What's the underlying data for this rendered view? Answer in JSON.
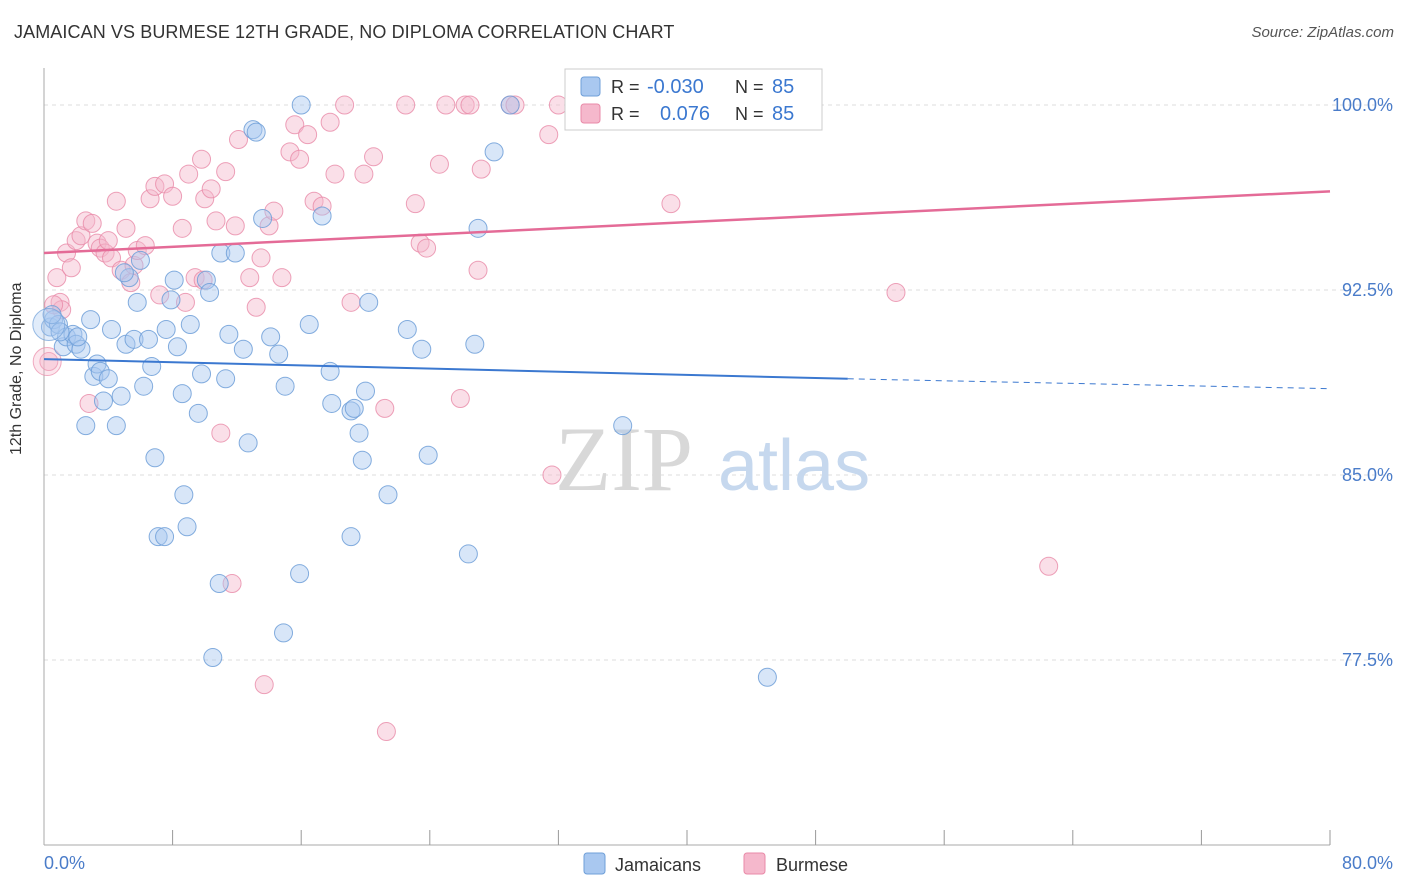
{
  "header": {
    "title": "JAMAICAN VS BURMESE 12TH GRADE, NO DIPLOMA CORRELATION CHART",
    "source": "Source: ZipAtlas.com"
  },
  "legend_top": {
    "row1": {
      "r_label": "R =",
      "r_value": "-0.030",
      "n_label": "N =",
      "n_value": "85"
    },
    "row2": {
      "r_label": "R =",
      "r_value": "0.076",
      "n_label": "N =",
      "n_value": "85"
    }
  },
  "legend_bottom": {
    "series1": "Jamaicans",
    "series2": "Burmese"
  },
  "watermark": {
    "part1": "ZIP",
    "part2": "atlas"
  },
  "colors": {
    "blue_fill": "#a9c8f0",
    "blue_stroke": "#6f9fd8",
    "blue_line": "#3b78d0",
    "pink_fill": "#f5b8cc",
    "pink_stroke": "#e98aa8",
    "pink_line": "#e46b97",
    "tick_text": "#4a7cc9",
    "grid": "#dddddd"
  },
  "chart_data": {
    "type": "scatter",
    "title": "JAMAICAN VS BURMESE 12TH GRADE, NO DIPLOMA CORRELATION CHART",
    "xlabel": "",
    "ylabel": "12th Grade, No Diploma",
    "xlim": [
      0,
      80
    ],
    "ylim": [
      70.0,
      101.5
    ],
    "x_tick_labels": [
      "0.0%",
      "80.0%"
    ],
    "y_ticks": [
      77.5,
      85.0,
      92.5,
      100.0
    ],
    "y_tick_labels": [
      "77.5%",
      "85.0%",
      "92.5%",
      "100.0%"
    ],
    "grid": true,
    "legend_placement": "top-center and bottom-center",
    "series": [
      {
        "name": "Jamaicans",
        "r": -0.03,
        "n": 85,
        "trend": {
          "x0": 0,
          "y0": 89.7,
          "x1": 50,
          "y1": 88.9,
          "dashed_to_x": 80,
          "dashed_to_y": 88.5
        },
        "points": [
          [
            0.4,
            91.0
          ],
          [
            0.6,
            91.3
          ],
          [
            0.9,
            91.1
          ],
          [
            1.2,
            90.2
          ],
          [
            1.4,
            90.6
          ],
          [
            1.8,
            90.7
          ],
          [
            2.0,
            90.3
          ],
          [
            2.3,
            90.1
          ],
          [
            2.6,
            87.0
          ],
          [
            2.9,
            91.3
          ],
          [
            3.1,
            89.0
          ],
          [
            3.3,
            89.5
          ],
          [
            3.5,
            89.2
          ],
          [
            3.7,
            88.0
          ],
          [
            4.0,
            88.9
          ],
          [
            4.2,
            90.9
          ],
          [
            4.5,
            87.0
          ],
          [
            4.8,
            88.2
          ],
          [
            5.1,
            90.3
          ],
          [
            5.3,
            93.0
          ],
          [
            5.6,
            90.5
          ],
          [
            5.8,
            92.0
          ],
          [
            6.0,
            93.7
          ],
          [
            6.2,
            88.6
          ],
          [
            6.5,
            90.5
          ],
          [
            6.7,
            89.4
          ],
          [
            6.9,
            85.7
          ],
          [
            7.1,
            82.5
          ],
          [
            7.5,
            82.5
          ],
          [
            7.6,
            90.9
          ],
          [
            7.9,
            92.1
          ],
          [
            8.1,
            92.9
          ],
          [
            8.3,
            90.2
          ],
          [
            8.6,
            88.3
          ],
          [
            8.7,
            84.2
          ],
          [
            8.9,
            82.9
          ],
          [
            9.1,
            91.1
          ],
          [
            9.6,
            87.5
          ],
          [
            9.8,
            89.1
          ],
          [
            10.1,
            92.9
          ],
          [
            10.3,
            92.4
          ],
          [
            10.5,
            77.6
          ],
          [
            10.9,
            80.6
          ],
          [
            11.0,
            94.0
          ],
          [
            11.3,
            88.9
          ],
          [
            11.5,
            90.7
          ],
          [
            11.9,
            94.0
          ],
          [
            12.4,
            90.1
          ],
          [
            12.7,
            86.3
          ],
          [
            13.0,
            99.0
          ],
          [
            13.2,
            98.9
          ],
          [
            13.6,
            95.4
          ],
          [
            14.1,
            90.6
          ],
          [
            14.6,
            89.9
          ],
          [
            15.0,
            88.6
          ],
          [
            14.9,
            78.6
          ],
          [
            15.9,
            81.0
          ],
          [
            16.0,
            100.0
          ],
          [
            16.5,
            91.1
          ],
          [
            17.3,
            95.5
          ],
          [
            17.8,
            89.2
          ],
          [
            17.9,
            87.9
          ],
          [
            19.1,
            87.6
          ],
          [
            19.3,
            87.7
          ],
          [
            19.6,
            86.7
          ],
          [
            19.8,
            85.6
          ],
          [
            20.0,
            88.4
          ],
          [
            20.2,
            92.0
          ],
          [
            19.1,
            82.5
          ],
          [
            21.4,
            84.2
          ],
          [
            22.6,
            90.9
          ],
          [
            23.5,
            90.1
          ],
          [
            23.9,
            85.8
          ],
          [
            26.4,
            81.8
          ],
          [
            26.8,
            90.3
          ],
          [
            27.0,
            95.0
          ],
          [
            28.0,
            98.1
          ],
          [
            29.0,
            100.0
          ],
          [
            36.0,
            87.0
          ],
          [
            39.0,
            100.0
          ],
          [
            45.0,
            76.8
          ],
          [
            0.5,
            91.5
          ],
          [
            1.0,
            90.8
          ],
          [
            2.1,
            90.6
          ],
          [
            5.0,
            93.2
          ]
        ]
      },
      {
        "name": "Burmese",
        "r": 0.076,
        "n": 85,
        "trend": {
          "x0": 0,
          "y0": 94.0,
          "x1": 80,
          "y1": 96.5
        },
        "points": [
          [
            0.3,
            89.6
          ],
          [
            0.8,
            93.0
          ],
          [
            1.0,
            92.0
          ],
          [
            1.1,
            91.7
          ],
          [
            1.4,
            94.0
          ],
          [
            1.7,
            93.4
          ],
          [
            2.0,
            94.5
          ],
          [
            2.3,
            94.7
          ],
          [
            2.6,
            95.3
          ],
          [
            2.8,
            87.9
          ],
          [
            3.0,
            95.2
          ],
          [
            3.3,
            94.4
          ],
          [
            3.5,
            94.2
          ],
          [
            3.8,
            94.0
          ],
          [
            4.0,
            94.5
          ],
          [
            4.2,
            93.8
          ],
          [
            4.5,
            96.1
          ],
          [
            4.8,
            93.3
          ],
          [
            5.1,
            95.0
          ],
          [
            5.4,
            92.8
          ],
          [
            5.6,
            93.5
          ],
          [
            5.8,
            94.1
          ],
          [
            6.3,
            94.3
          ],
          [
            6.6,
            96.2
          ],
          [
            6.9,
            96.7
          ],
          [
            7.2,
            92.3
          ],
          [
            7.5,
            96.8
          ],
          [
            8.0,
            96.3
          ],
          [
            8.6,
            95.0
          ],
          [
            8.8,
            92.0
          ],
          [
            9.0,
            97.2
          ],
          [
            9.4,
            93.0
          ],
          [
            9.8,
            97.8
          ],
          [
            10.0,
            96.2
          ],
          [
            10.4,
            96.6
          ],
          [
            10.7,
            95.3
          ],
          [
            11.0,
            86.7
          ],
          [
            11.3,
            97.3
          ],
          [
            11.9,
            95.1
          ],
          [
            12.1,
            98.6
          ],
          [
            12.8,
            93.0
          ],
          [
            13.2,
            91.8
          ],
          [
            13.5,
            93.8
          ],
          [
            13.7,
            76.5
          ],
          [
            14.0,
            95.1
          ],
          [
            14.3,
            95.7
          ],
          [
            14.8,
            93.0
          ],
          [
            15.3,
            98.1
          ],
          [
            15.6,
            99.2
          ],
          [
            15.9,
            97.8
          ],
          [
            16.4,
            98.8
          ],
          [
            16.8,
            96.1
          ],
          [
            17.3,
            95.9
          ],
          [
            17.8,
            99.3
          ],
          [
            18.1,
            97.2
          ],
          [
            18.7,
            100.0
          ],
          [
            19.1,
            92.0
          ],
          [
            19.9,
            97.2
          ],
          [
            20.5,
            97.9
          ],
          [
            21.2,
            87.7
          ],
          [
            21.3,
            74.6
          ],
          [
            22.5,
            100.0
          ],
          [
            23.1,
            96.0
          ],
          [
            23.4,
            94.4
          ],
          [
            23.8,
            94.2
          ],
          [
            24.6,
            97.6
          ],
          [
            25.0,
            100.0
          ],
          [
            25.9,
            88.1
          ],
          [
            26.2,
            100.0
          ],
          [
            26.5,
            100.0
          ],
          [
            27.2,
            97.4
          ],
          [
            27.0,
            93.3
          ],
          [
            29.0,
            100.0
          ],
          [
            29.3,
            100.0
          ],
          [
            31.4,
            98.8
          ],
          [
            31.6,
            85.0
          ],
          [
            32.0,
            100.0
          ],
          [
            35.0,
            100.0
          ],
          [
            38.0,
            100.0
          ],
          [
            39.0,
            96.0
          ],
          [
            53.0,
            92.4
          ],
          [
            62.5,
            81.3
          ],
          [
            11.7,
            80.6
          ],
          [
            0.6,
            91.9
          ],
          [
            9.9,
            92.9
          ]
        ]
      }
    ]
  }
}
